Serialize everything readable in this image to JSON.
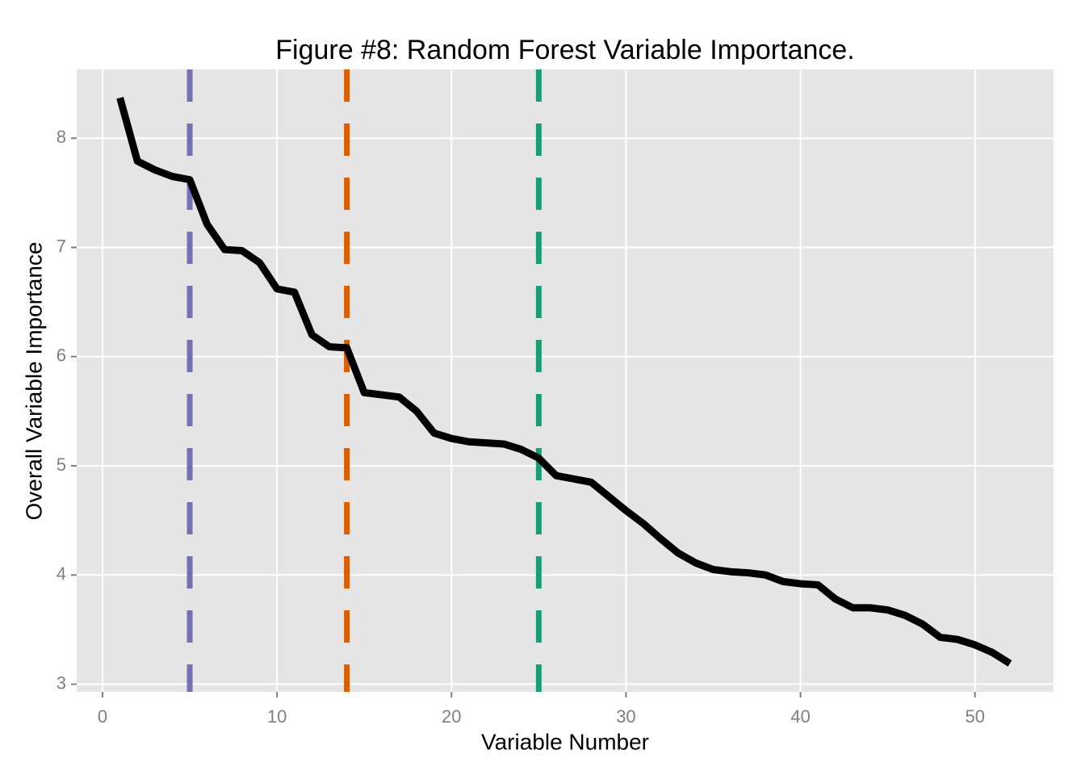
{
  "chart_data": {
    "type": "line",
    "title": "Figure #8: Random Forest Variable Importance.",
    "x_label": "Variable Number",
    "y_label": "Overall Variable Importance",
    "x": [
      1,
      2,
      3,
      4,
      5,
      6,
      7,
      8,
      9,
      10,
      11,
      12,
      13,
      14,
      15,
      16,
      17,
      18,
      19,
      20,
      21,
      22,
      23,
      24,
      25,
      26,
      27,
      28,
      29,
      30,
      31,
      32,
      33,
      34,
      35,
      36,
      37,
      38,
      39,
      40,
      41,
      42,
      43,
      44,
      45,
      46,
      47,
      48,
      49,
      50,
      51,
      52
    ],
    "series": [
      {
        "color": "#000000",
        "values": [
          8.37,
          7.79,
          7.71,
          7.65,
          7.62,
          7.21,
          6.98,
          6.97,
          6.86,
          6.62,
          6.59,
          6.2,
          6.09,
          6.08,
          5.67,
          5.65,
          5.63,
          5.5,
          5.3,
          5.25,
          5.22,
          5.21,
          5.2,
          5.15,
          5.07,
          4.91,
          4.88,
          4.85,
          4.72,
          4.59,
          4.47,
          4.33,
          4.2,
          4.11,
          4.05,
          4.03,
          4.02,
          4.0,
          3.94,
          3.92,
          3.91,
          3.78,
          3.7,
          3.7,
          3.68,
          3.63,
          3.55,
          3.43,
          3.41,
          3.36,
          3.29,
          3.19
        ]
      }
    ],
    "vlines": [
      {
        "x": 5,
        "color": "#7570b3"
      },
      {
        "x": 14,
        "color": "#d95f02"
      },
      {
        "x": 25,
        "color": "#1b9e77"
      }
    ],
    "xlim": [
      -1.48,
      54.5
    ],
    "ylim": [
      2.93,
      8.63
    ],
    "xticks": [
      0,
      10,
      20,
      30,
      40,
      50
    ],
    "yticks": [
      3,
      4,
      5,
      6,
      7,
      8
    ],
    "grid": true
  }
}
